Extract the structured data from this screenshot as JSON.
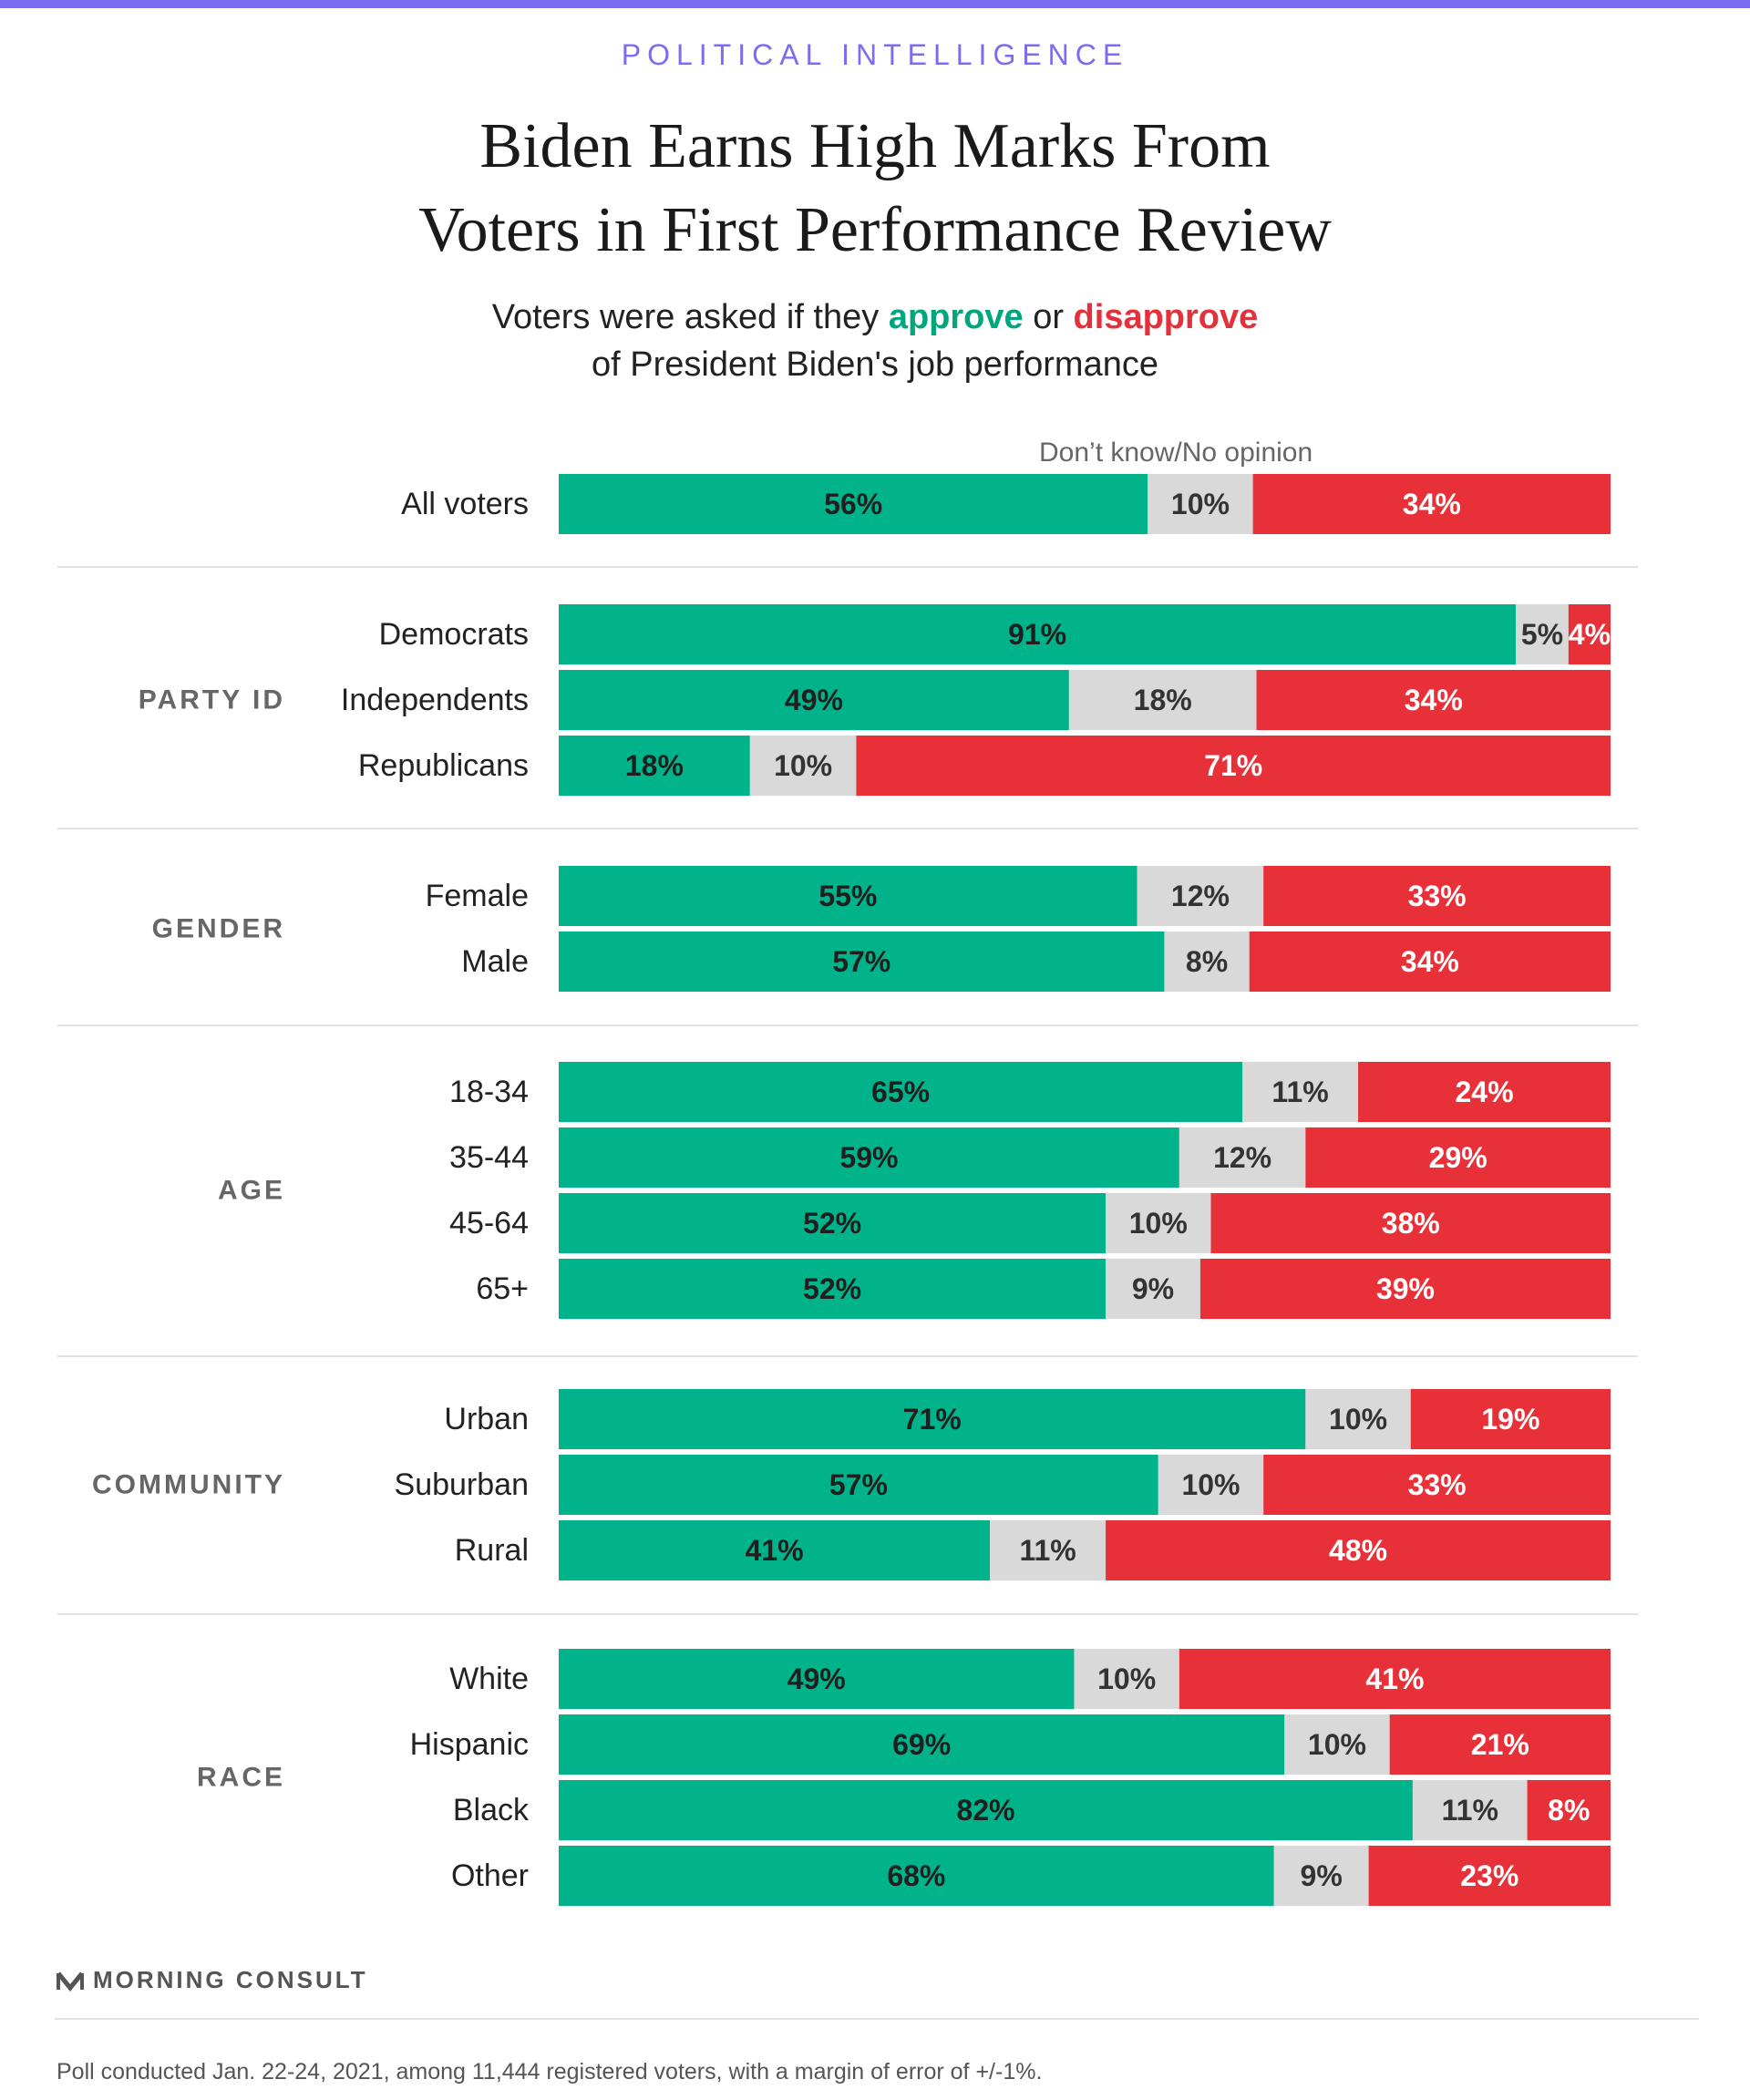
{
  "kicker": "POLITICAL INTELLIGENCE",
  "title_line1": "Biden Earns High Marks From",
  "title_line2": "Voters in First Performance Review",
  "subtitle": {
    "pre": "Voters were asked if they ",
    "approve": "approve",
    "mid": " or ",
    "disapprove": "disapprove",
    "line2": "of President Biden's job performance"
  },
  "dont_know_label": "Don’t know/No opinion",
  "colors": {
    "approve": "#00b38a",
    "dont_know": "#d9d9d9",
    "disapprove": "#e83039",
    "accent": "#7b6cf0"
  },
  "chart_data": {
    "type": "bar",
    "stacked": true,
    "orientation": "horizontal",
    "series_names": [
      "approve",
      "Don’t know/No opinion",
      "disapprove"
    ],
    "groups": [
      {
        "name": "",
        "rows": [
          {
            "label": "All voters",
            "values": [
              56,
              10,
              34
            ]
          }
        ]
      },
      {
        "name": "PARTY ID",
        "rows": [
          {
            "label": "Democrats",
            "values": [
              91,
              5,
              4
            ]
          },
          {
            "label": "Independents",
            "values": [
              49,
              18,
              34
            ]
          },
          {
            "label": "Republicans",
            "values": [
              18,
              10,
              71
            ]
          }
        ]
      },
      {
        "name": "GENDER",
        "rows": [
          {
            "label": "Female",
            "values": [
              55,
              12,
              33
            ]
          },
          {
            "label": "Male",
            "values": [
              57,
              8,
              34
            ]
          }
        ]
      },
      {
        "name": "AGE",
        "rows": [
          {
            "label": "18-34",
            "values": [
              65,
              11,
              24
            ]
          },
          {
            "label": "35-44",
            "values": [
              59,
              12,
              29
            ]
          },
          {
            "label": "45-64",
            "values": [
              52,
              10,
              38
            ]
          },
          {
            "label": "65+",
            "values": [
              52,
              9,
              39
            ]
          }
        ]
      },
      {
        "name": "COMMUNITY",
        "rows": [
          {
            "label": "Urban",
            "values": [
              71,
              10,
              19
            ]
          },
          {
            "label": "Suburban",
            "values": [
              57,
              10,
              33
            ]
          },
          {
            "label": "Rural",
            "values": [
              41,
              11,
              48
            ]
          }
        ]
      },
      {
        "name": "RACE",
        "rows": [
          {
            "label": "White",
            "values": [
              49,
              10,
              41
            ]
          },
          {
            "label": "Hispanic",
            "values": [
              69,
              10,
              21
            ]
          },
          {
            "label": "Black",
            "values": [
              82,
              11,
              8
            ]
          },
          {
            "label": "Other",
            "values": [
              68,
              9,
              23
            ]
          }
        ]
      }
    ]
  },
  "brand": "MORNING CONSULT",
  "footnote": "Poll conducted Jan. 22-24, 2021, among 11,444 registered voters, with a margin of error of +/-1%."
}
